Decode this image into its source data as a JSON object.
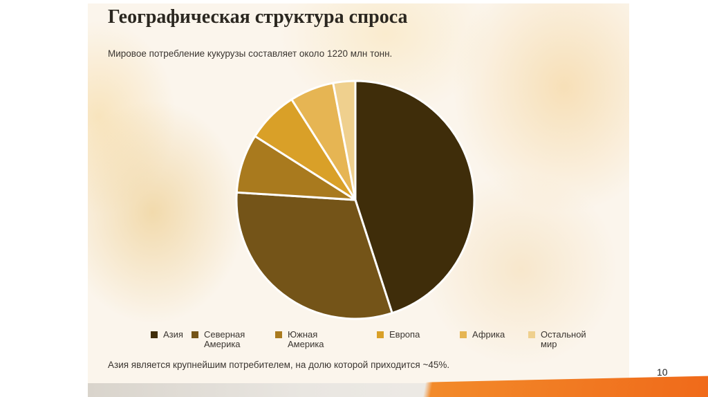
{
  "slide": {
    "title": "Географическая структура спроса",
    "subtitle": "Мировое потребление кукурузы составляет около 1220 млн тонн.",
    "note": "Азия является крупнейшим потребителем, на долю которой приходится ~45%.",
    "page_number": "10"
  },
  "chart_data": {
    "type": "pie",
    "slices": [
      {
        "label": "Азия",
        "value": 45,
        "color": "#3f2d0a"
      },
      {
        "label": "Северная Америка",
        "value": 31,
        "color": "#745418"
      },
      {
        "label": "Южная Америка",
        "value": 8,
        "color": "#a97a1e"
      },
      {
        "label": "Европа",
        "value": 7,
        "color": "#d9a028"
      },
      {
        "label": "Африка",
        "value": 6,
        "color": "#e6b553"
      },
      {
        "label": "Остальной мир",
        "value": 3,
        "color": "#efd08e"
      }
    ],
    "legend": [
      {
        "label_line1": "Азия",
        "label_line2": ""
      },
      {
        "label_line1": "Северная",
        "label_line2": "Америка"
      },
      {
        "label_line1": "Южная",
        "label_line2": "Америка"
      },
      {
        "label_line1": "Европа",
        "label_line2": ""
      },
      {
        "label_line1": "Африка",
        "label_line2": ""
      },
      {
        "label_line1": "Остальной",
        "label_line2": "мир"
      }
    ],
    "legend_position": "bottom"
  }
}
